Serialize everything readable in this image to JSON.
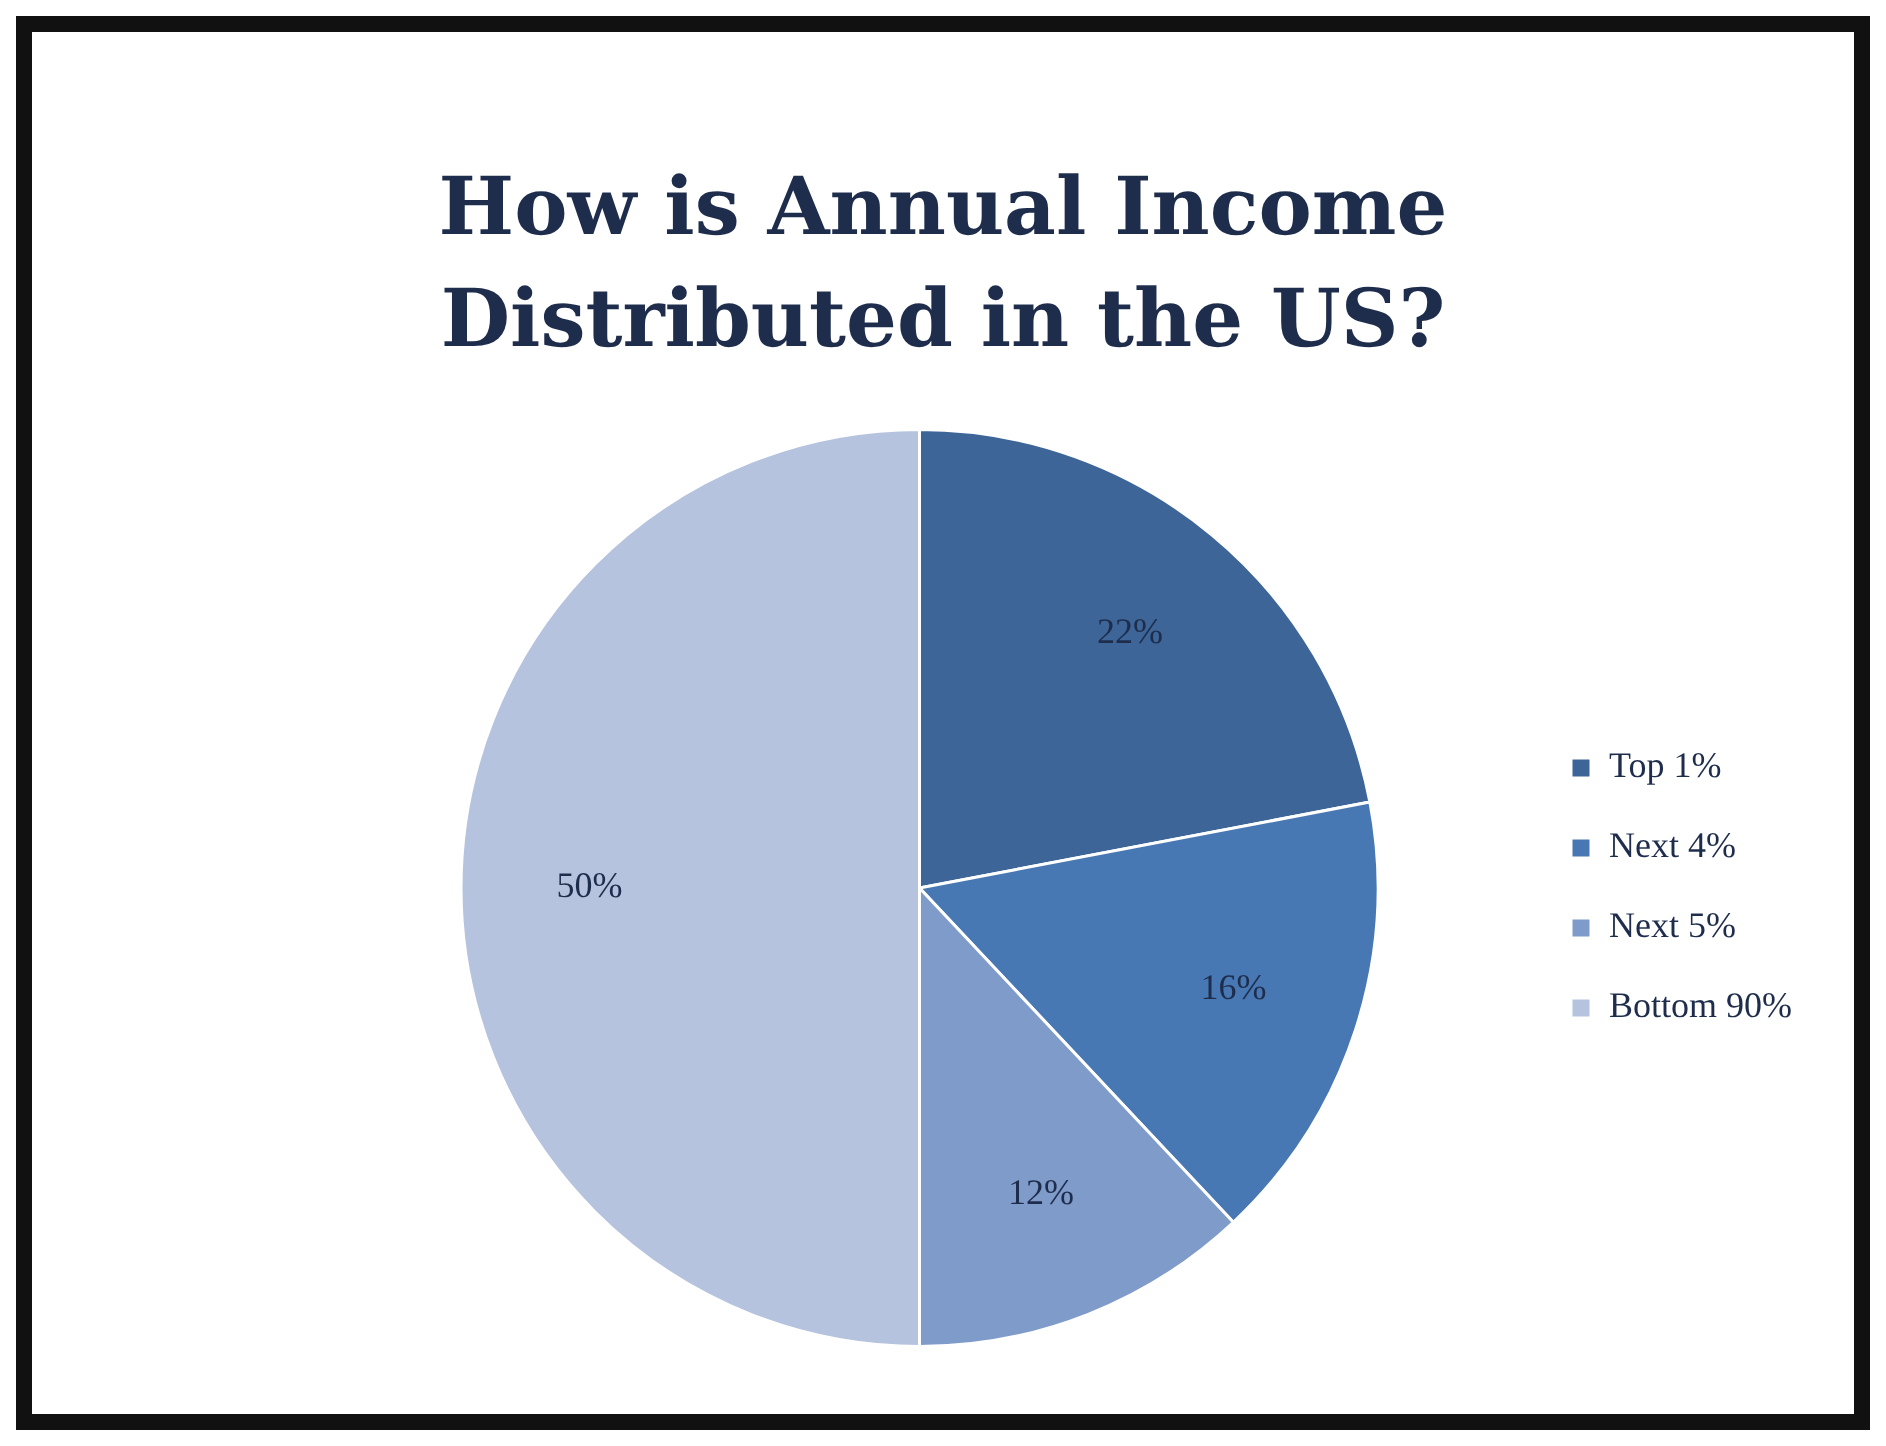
{
  "chart_data": {
    "type": "pie",
    "title": "How is Annual Income Distributed in the US?",
    "categories": [
      "Top 1%",
      "Next 4%",
      "Next 5%",
      "Bottom 90%"
    ],
    "values": [
      22,
      16,
      12,
      50
    ],
    "value_labels": [
      "22%",
      "16%",
      "12%",
      "50%"
    ],
    "colors": [
      "#3d6598",
      "#4878b3",
      "#7f9bc9",
      "#b5c3de"
    ],
    "legend": "right"
  }
}
